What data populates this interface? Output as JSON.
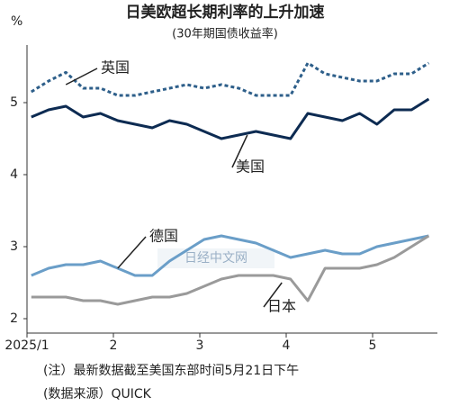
{
  "chart_data": {
    "type": "line",
    "title": "日美欧超长期利率的上升加速",
    "subtitle": "(30年期国债收益率)",
    "y_label": "%",
    "notes": [
      "(注）最新数据截至美国东部时间5月21日下午",
      "(数据来源）QUICK"
    ],
    "watermark": "日经中文网",
    "x": [
      1.05,
      1.25,
      1.45,
      1.65,
      1.85,
      2.05,
      2.25,
      2.45,
      2.65,
      2.85,
      3.05,
      3.25,
      3.45,
      3.65,
      3.85,
      4.05,
      4.25,
      4.45,
      4.65,
      4.85,
      5.05,
      5.25,
      5.45,
      5.65
    ],
    "xlim": [
      1,
      5.75
    ],
    "xticks": [
      {
        "value": 1,
        "label": "2025/1"
      },
      2,
      3,
      4,
      5
    ],
    "ylim": [
      1.8,
      5.8
    ],
    "yticks": [
      2,
      3,
      4,
      5
    ],
    "series": [
      {
        "name": "英国",
        "color": "#2e5f8a",
        "dash": true,
        "values": [
          5.15,
          5.3,
          5.42,
          5.2,
          5.2,
          5.1,
          5.1,
          5.15,
          5.2,
          5.25,
          5.2,
          5.25,
          5.2,
          5.1,
          5.1,
          5.1,
          5.55,
          5.4,
          5.35,
          5.3,
          5.3,
          5.4,
          5.4,
          5.55
        ]
      },
      {
        "name": "美国",
        "color": "#0d2b52",
        "dash": false,
        "values": [
          4.8,
          4.9,
          4.95,
          4.8,
          4.85,
          4.75,
          4.7,
          4.65,
          4.75,
          4.7,
          4.6,
          4.5,
          4.55,
          4.6,
          4.55,
          4.5,
          4.85,
          4.8,
          4.75,
          4.85,
          4.7,
          4.9,
          4.9,
          5.05
        ]
      },
      {
        "name": "德国",
        "color": "#6a9ec8",
        "dash": false,
        "values": [
          2.6,
          2.7,
          2.75,
          2.75,
          2.8,
          2.7,
          2.6,
          2.6,
          2.8,
          2.95,
          3.1,
          3.15,
          3.1,
          3.05,
          2.95,
          2.85,
          2.9,
          2.95,
          2.9,
          2.9,
          3.0,
          3.05,
          3.1,
          3.15
        ]
      },
      {
        "name": "日本",
        "color": "#9a9a9a",
        "dash": false,
        "values": [
          2.3,
          2.3,
          2.3,
          2.25,
          2.25,
          2.2,
          2.25,
          2.3,
          2.3,
          2.35,
          2.45,
          2.55,
          2.6,
          2.6,
          2.6,
          2.55,
          2.25,
          2.7,
          2.7,
          2.7,
          2.75,
          2.85,
          3.0,
          3.15
        ]
      }
    ]
  }
}
